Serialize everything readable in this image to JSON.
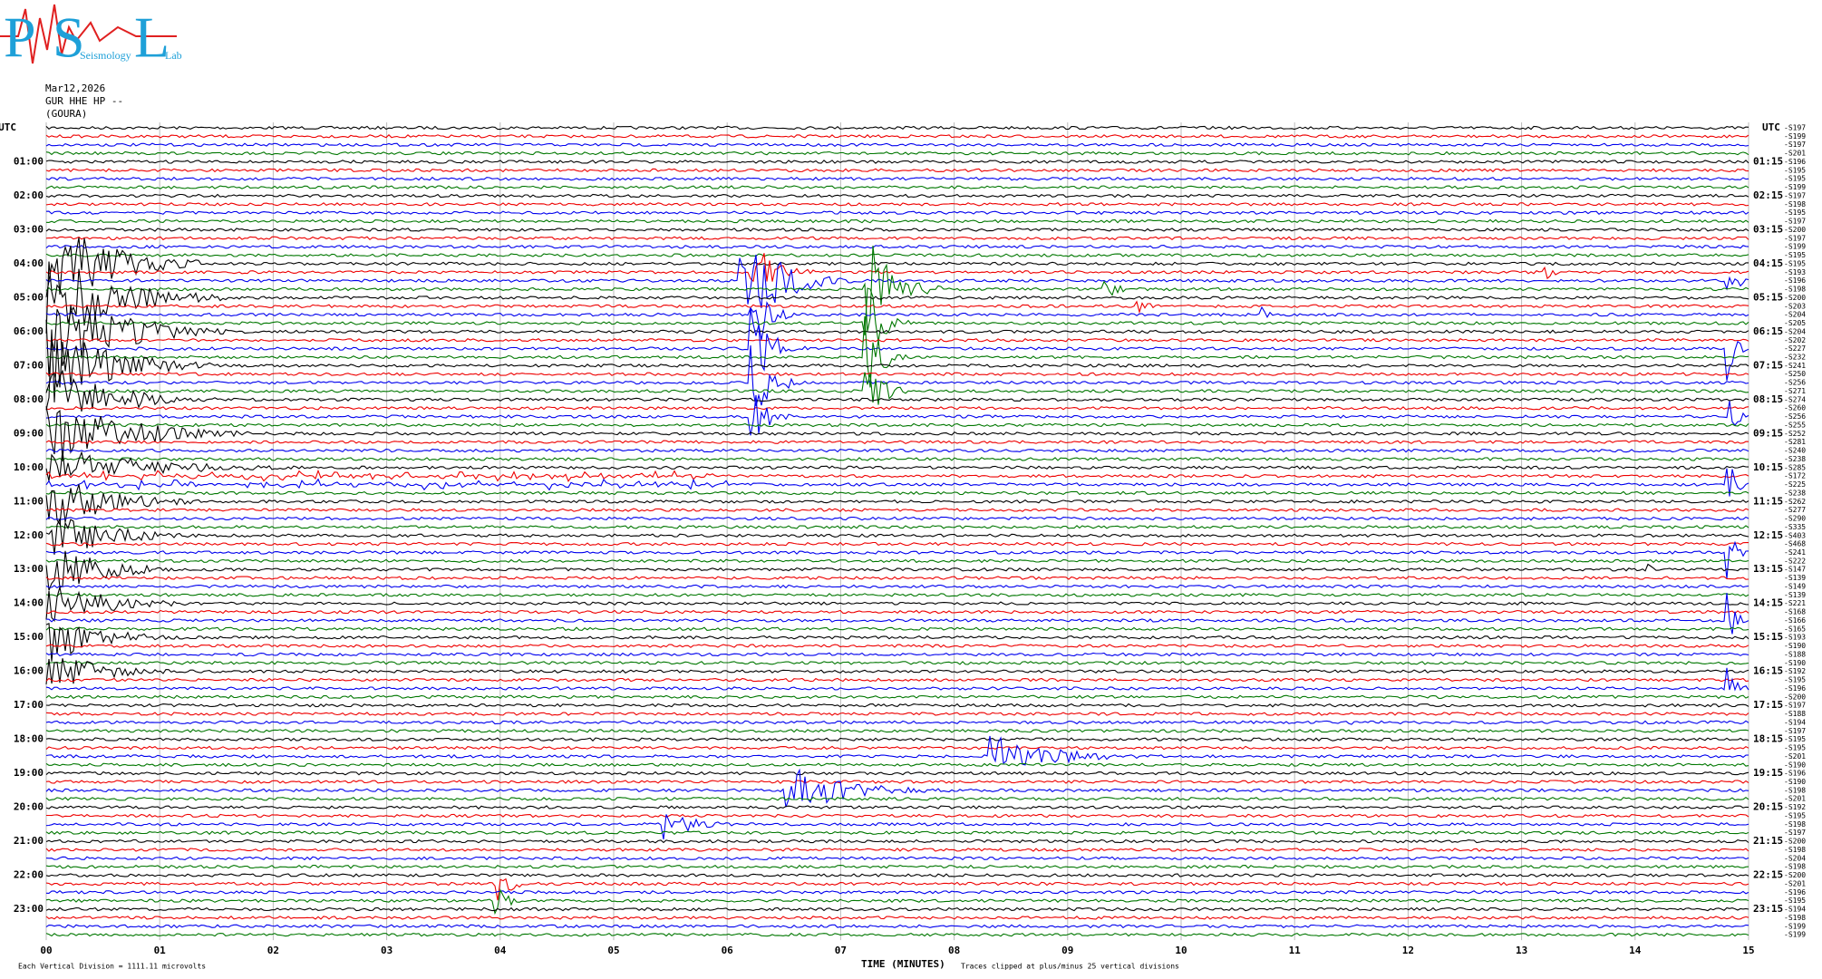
{
  "logo": {
    "letters": [
      "P",
      "S",
      "L"
    ],
    "words": [
      "Seismology",
      "Lab"
    ]
  },
  "header": {
    "date": "Mar12,2026",
    "channel": "GUR HHE HP --",
    "station": "(GOURA)"
  },
  "left_labels": [
    "UTC",
    "01:00",
    "02:00",
    "03:00",
    "04:00",
    "05:00",
    "06:00",
    "07:00",
    "08:00",
    "09:00",
    "10:00",
    "11:00",
    "12:00",
    "13:00",
    "14:00",
    "15:00",
    "16:00",
    "17:00",
    "18:00",
    "19:00",
    "20:00",
    "21:00",
    "22:00",
    "23:00"
  ],
  "right_labels": [
    "UTC",
    "01:15",
    "02:15",
    "03:15",
    "04:15",
    "05:15",
    "06:15",
    "07:15",
    "08:15",
    "09:15",
    "10:15",
    "11:15",
    "12:15",
    "13:15",
    "14:15",
    "15:15",
    "16:15",
    "17:15",
    "18:15",
    "19:15",
    "20:15",
    "21:15",
    "22:15",
    "23:15"
  ],
  "right_values": [
    "-S197",
    "-S199",
    "-S197",
    "-S201",
    "-S196",
    "-S195",
    "-S195",
    "-S199",
    "-S197",
    "-S198",
    "-S195",
    "-S197",
    "-S200",
    "-S197",
    "-S199",
    "-S195",
    "-S195",
    "-S193",
    "-S196",
    "-S198",
    "-S200",
    "-S203",
    "-S204",
    "-S205",
    "-S204",
    "-S202",
    "-S227",
    "-S232",
    "-S241",
    "-S250",
    "-S256",
    "-S271",
    "-S274",
    "-S260",
    "-S256",
    "-S255",
    "-S252",
    "-S281",
    "-S240",
    "-S238",
    "-S285",
    "-S172",
    "-S225",
    "-S238",
    "-S262",
    "-S277",
    "-S290",
    "-S335",
    "-S403",
    "-S468",
    "-S241",
    "-S222",
    "-S147",
    "-S139",
    "-S149",
    "-S139",
    "-S221",
    "-S168",
    "-S166",
    "-S165",
    "-S193",
    "-S190",
    "-S188",
    "-S190",
    "-S192",
    "-S195",
    "-S196",
    "-S200",
    "-S197",
    "-S188",
    "-S194",
    "-S197",
    "-S195",
    "-S195",
    "-S201",
    "-S190",
    "-S196",
    "-S190",
    "-S198",
    "-S201",
    "-S192",
    "-S195",
    "-S198",
    "-S197",
    "-S200",
    "-S198",
    "-S204",
    "-S198",
    "-S200",
    "-S201",
    "-S196",
    "-S195",
    "-S194",
    "-S198",
    "-S199",
    "-S199"
  ],
  "x_labels": [
    "00",
    "01",
    "02",
    "03",
    "04",
    "05",
    "06",
    "07",
    "08",
    "09",
    "10",
    "11",
    "12",
    "13",
    "14",
    "15"
  ],
  "footer": {
    "scale": "Each Vertical Division = 1111.11 microvolts",
    "axis_title": "TIME (MINUTES)",
    "clip_note": "Traces clipped at plus/minus 25 vertical divisions"
  }
}
